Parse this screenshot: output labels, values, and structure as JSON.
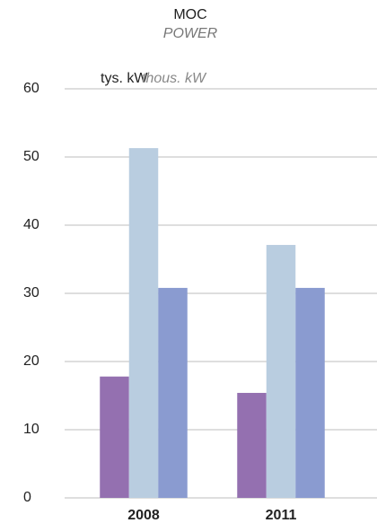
{
  "chart_data": {
    "type": "bar",
    "title": "MOC",
    "subtitle": "POWER",
    "y_axis_label": "tys. kW",
    "y_axis_label_en": "thous. kW",
    "categories": [
      "2008",
      "2011"
    ],
    "series": [
      {
        "color": "#9470b0",
        "values": [
          17.8,
          15.4
        ]
      },
      {
        "color": "#b9cde0",
        "values": [
          51.3,
          37.1
        ]
      },
      {
        "color": "#8a9bd0",
        "values": [
          30.8,
          30.8
        ]
      }
    ],
    "ylim": [
      0,
      60
    ],
    "yticks": [
      0,
      10,
      20,
      30,
      40,
      50,
      60
    ],
    "grid": true
  }
}
